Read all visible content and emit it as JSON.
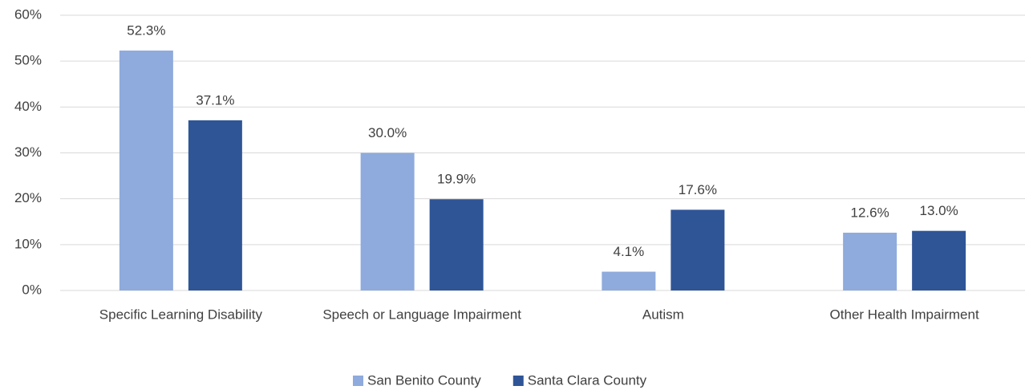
{
  "chart_data": {
    "type": "bar",
    "categories": [
      "Specific Learning Disability",
      "Speech or Language Impairment",
      "Autism",
      "Other Health Impairment"
    ],
    "series": [
      {
        "name": "San Benito County",
        "color": "#8faadc",
        "values": [
          52.3,
          30.0,
          4.1,
          12.6
        ],
        "value_labels": [
          "52.3%",
          "30.0%",
          "4.1%",
          "12.6%"
        ]
      },
      {
        "name": "Santa Clara County",
        "color": "#2f5597",
        "values": [
          37.1,
          19.9,
          17.6,
          13.0
        ],
        "value_labels": [
          "37.1%",
          "19.9%",
          "17.6%",
          "13.0%"
        ]
      }
    ],
    "ylim": [
      0,
      60
    ],
    "yticks": [
      {
        "value": 0,
        "label": "0%"
      },
      {
        "value": 10,
        "label": "10%"
      },
      {
        "value": 20,
        "label": "20%"
      },
      {
        "value": 30,
        "label": "30%"
      },
      {
        "value": 40,
        "label": "40%"
      },
      {
        "value": 50,
        "label": "50%"
      },
      {
        "value": 60,
        "label": "60%"
      }
    ],
    "grid": true,
    "legend": "bottom"
  }
}
